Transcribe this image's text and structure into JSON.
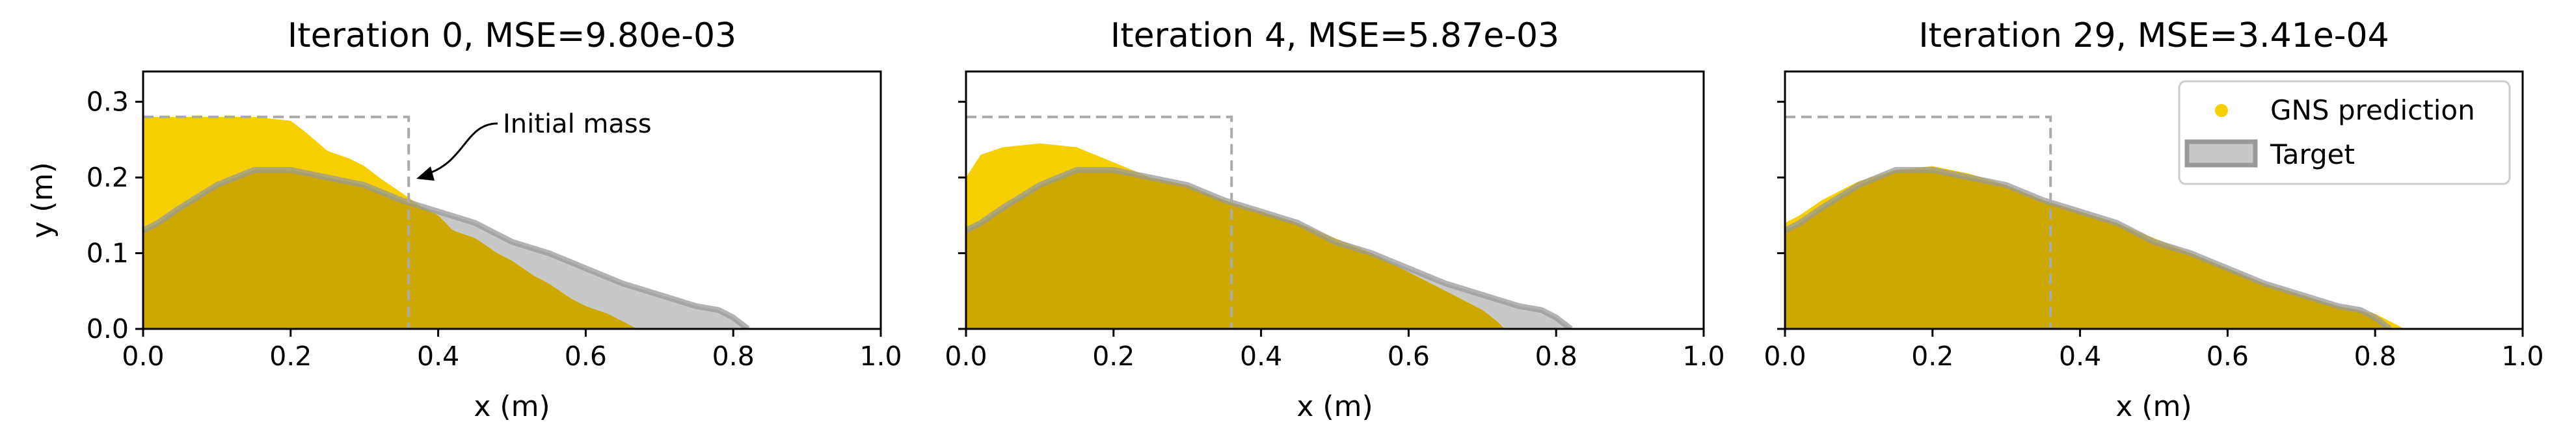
{
  "colors": {
    "prediction": "#f5cf00",
    "overlap": "#cca800",
    "target_fill": "#c8c8c8",
    "target_edge": "#999999",
    "initial_box": "#aaaaaa"
  },
  "chart_data": [
    {
      "type": "area",
      "title": "Iteration 0, MSE=9.80e-03",
      "xlabel": "x (m)",
      "ylabel": "y (m)",
      "xlim": [
        0,
        1.0
      ],
      "ylim": [
        0,
        0.34
      ],
      "xticks": [
        "0.0",
        "0.2",
        "0.4",
        "0.6",
        "0.8",
        "1.0"
      ],
      "xtick_values": [
        0,
        0.2,
        0.4,
        0.6,
        0.8,
        1.0
      ],
      "yticks": [
        "0.0",
        "0.1",
        "0.2",
        "0.3"
      ],
      "ytick_values": [
        0,
        0.1,
        0.2,
        0.3
      ],
      "initial_mass": {
        "x": [
          0,
          0.36
        ],
        "y": [
          0,
          0.28
        ]
      },
      "annotation": {
        "text": "Initial mass",
        "x": 0.36,
        "y": 0.2
      },
      "series": [
        {
          "name": "GNS prediction",
          "x": [
            0,
            0.05,
            0.1,
            0.15,
            0.2,
            0.22,
            0.25,
            0.28,
            0.3,
            0.32,
            0.35,
            0.38,
            0.4,
            0.42,
            0.45,
            0.48,
            0.5,
            0.53,
            0.55,
            0.58,
            0.6,
            0.63,
            0.65,
            0.67
          ],
          "y": [
            0.28,
            0.28,
            0.28,
            0.28,
            0.275,
            0.26,
            0.235,
            0.225,
            0.215,
            0.2,
            0.18,
            0.16,
            0.15,
            0.13,
            0.12,
            0.1,
            0.09,
            0.07,
            0.06,
            0.04,
            0.03,
            0.02,
            0.01,
            0.0
          ]
        },
        {
          "name": "Target",
          "x": [
            0,
            0.02,
            0.05,
            0.1,
            0.15,
            0.2,
            0.25,
            0.3,
            0.35,
            0.4,
            0.45,
            0.5,
            0.55,
            0.6,
            0.65,
            0.7,
            0.75,
            0.78,
            0.8,
            0.82
          ],
          "y": [
            0.13,
            0.14,
            0.16,
            0.19,
            0.21,
            0.21,
            0.2,
            0.19,
            0.17,
            0.155,
            0.14,
            0.115,
            0.1,
            0.08,
            0.06,
            0.045,
            0.03,
            0.025,
            0.015,
            0.0
          ]
        }
      ]
    },
    {
      "type": "area",
      "title": "Iteration 4, MSE=5.87e-03",
      "xlabel": "x (m)",
      "xlim": [
        0,
        1.0
      ],
      "ylim": [
        0,
        0.34
      ],
      "xticks": [
        "0.0",
        "0.2",
        "0.4",
        "0.6",
        "0.8",
        "1.0"
      ],
      "xtick_values": [
        0,
        0.2,
        0.4,
        0.6,
        0.8,
        1.0
      ],
      "ytick_values": [
        0,
        0.1,
        0.2,
        0.3
      ],
      "initial_mass": {
        "x": [
          0,
          0.36
        ],
        "y": [
          0,
          0.28
        ]
      },
      "series": [
        {
          "name": "GNS prediction",
          "x": [
            0,
            0.02,
            0.05,
            0.1,
            0.15,
            0.2,
            0.25,
            0.3,
            0.35,
            0.4,
            0.45,
            0.5,
            0.55,
            0.6,
            0.65,
            0.7,
            0.72,
            0.73
          ],
          "y": [
            0.2,
            0.23,
            0.24,
            0.245,
            0.24,
            0.22,
            0.2,
            0.19,
            0.17,
            0.155,
            0.14,
            0.12,
            0.1,
            0.075,
            0.05,
            0.025,
            0.01,
            0.0
          ]
        },
        {
          "name": "Target",
          "x": [
            0,
            0.02,
            0.05,
            0.1,
            0.15,
            0.2,
            0.25,
            0.3,
            0.35,
            0.4,
            0.45,
            0.5,
            0.55,
            0.6,
            0.65,
            0.7,
            0.75,
            0.78,
            0.8,
            0.82
          ],
          "y": [
            0.13,
            0.14,
            0.16,
            0.19,
            0.21,
            0.21,
            0.2,
            0.19,
            0.17,
            0.155,
            0.14,
            0.115,
            0.1,
            0.08,
            0.06,
            0.045,
            0.03,
            0.025,
            0.015,
            0.0
          ]
        }
      ]
    },
    {
      "type": "area",
      "title": "Iteration 29, MSE=3.41e-04",
      "xlabel": "x (m)",
      "xlim": [
        0,
        1.0
      ],
      "ylim": [
        0,
        0.34
      ],
      "xticks": [
        "0.0",
        "0.2",
        "0.4",
        "0.6",
        "0.8",
        "1.0"
      ],
      "xtick_values": [
        0,
        0.2,
        0.4,
        0.6,
        0.8,
        1.0
      ],
      "ytick_values": [
        0,
        0.1,
        0.2,
        0.3
      ],
      "initial_mass": {
        "x": [
          0,
          0.36
        ],
        "y": [
          0,
          0.28
        ]
      },
      "legend": {
        "location": "upper right",
        "entries": [
          "GNS prediction",
          "Target"
        ]
      },
      "series": [
        {
          "name": "GNS prediction",
          "x": [
            0,
            0.02,
            0.05,
            0.1,
            0.15,
            0.2,
            0.25,
            0.3,
            0.35,
            0.4,
            0.45,
            0.5,
            0.55,
            0.6,
            0.65,
            0.7,
            0.75,
            0.8,
            0.82,
            0.84
          ],
          "y": [
            0.14,
            0.15,
            0.17,
            0.195,
            0.21,
            0.215,
            0.205,
            0.19,
            0.17,
            0.155,
            0.14,
            0.12,
            0.1,
            0.08,
            0.06,
            0.045,
            0.03,
            0.02,
            0.01,
            0.0
          ]
        },
        {
          "name": "Target",
          "x": [
            0,
            0.02,
            0.05,
            0.1,
            0.15,
            0.2,
            0.25,
            0.3,
            0.35,
            0.4,
            0.45,
            0.5,
            0.55,
            0.6,
            0.65,
            0.7,
            0.75,
            0.78,
            0.8,
            0.82
          ],
          "y": [
            0.13,
            0.14,
            0.16,
            0.19,
            0.21,
            0.21,
            0.2,
            0.19,
            0.17,
            0.155,
            0.14,
            0.115,
            0.1,
            0.08,
            0.06,
            0.045,
            0.03,
            0.025,
            0.015,
            0.0
          ]
        }
      ]
    }
  ]
}
